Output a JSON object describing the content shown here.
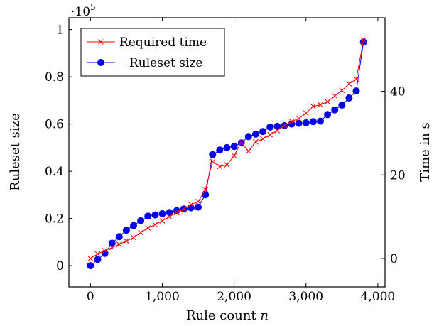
{
  "chart_data": {
    "type": "line",
    "xlabel_main": "Rule count ",
    "xlabel_var": "n",
    "ylabel_left": "Ruleset size",
    "ylabel_right": "Time in s",
    "multiplier_base": "·10",
    "multiplier_exp": "5",
    "grid": false,
    "legend_position": "top-left",
    "x_ticks": [
      0,
      1000,
      2000,
      3000,
      4000
    ],
    "x_tick_labels": [
      "0",
      "1,000",
      "2,000",
      "3,000",
      "4,000"
    ],
    "y_left_ticks": [
      0,
      0.2,
      0.4,
      0.6,
      0.8,
      1
    ],
    "y_left_tick_labels": [
      "0",
      "0.2",
      "0.4",
      "0.6",
      "0.8",
      "1"
    ],
    "y_right_ticks": [
      0,
      20,
      40
    ],
    "y_right_tick_labels": [
      "0",
      "20",
      "40"
    ],
    "xlim": [
      -300,
      4100
    ],
    "ylim_left": [
      -0.09,
      1.05
    ],
    "ylim_right": [
      -6.8,
      57.6
    ],
    "series": [
      {
        "name": "Required time",
        "axis": "right",
        "color": "#ff0000",
        "marker": "x",
        "x": [
          0,
          100,
          200,
          300,
          400,
          500,
          600,
          700,
          800,
          900,
          1000,
          1100,
          1200,
          1300,
          1400,
          1500,
          1600,
          1700,
          1800,
          1900,
          2000,
          2100,
          2200,
          2300,
          2400,
          2500,
          2600,
          2700,
          2800,
          2900,
          3000,
          3100,
          3200,
          3300,
          3400,
          3500,
          3600,
          3700,
          3800
        ],
        "y": [
          0.0,
          1.1,
          1.9,
          2.6,
          3.4,
          4.2,
          5.0,
          6.2,
          7.3,
          8.1,
          9.0,
          10.0,
          11.0,
          11.9,
          12.9,
          13.6,
          16.5,
          23.2,
          22.0,
          22.4,
          24.6,
          27.8,
          25.7,
          27.9,
          28.6,
          29.6,
          30.6,
          31.8,
          32.8,
          33.5,
          34.8,
          36.4,
          36.8,
          37.5,
          38.9,
          40.2,
          41.8,
          42.9,
          52.3
        ]
      },
      {
        "name": "Ruleset size",
        "axis": "left",
        "color": "#0000ee",
        "marker": "circle",
        "x": [
          0,
          100,
          200,
          300,
          400,
          500,
          600,
          700,
          800,
          900,
          1000,
          1100,
          1200,
          1300,
          1400,
          1500,
          1600,
          1700,
          1800,
          1900,
          2000,
          2100,
          2200,
          2300,
          2400,
          2500,
          2600,
          2700,
          2800,
          2900,
          3000,
          3100,
          3200,
          3300,
          3400,
          3500,
          3600,
          3700,
          3800
        ],
        "y": [
          0.0,
          0.026,
          0.052,
          0.095,
          0.123,
          0.15,
          0.17,
          0.19,
          0.21,
          0.215,
          0.22,
          0.225,
          0.233,
          0.24,
          0.245,
          0.248,
          0.3,
          0.47,
          0.49,
          0.5,
          0.505,
          0.52,
          0.547,
          0.557,
          0.568,
          0.587,
          0.59,
          0.593,
          0.6,
          0.603,
          0.605,
          0.61,
          0.612,
          0.64,
          0.66,
          0.68,
          0.71,
          0.74,
          0.947
        ]
      }
    ]
  }
}
